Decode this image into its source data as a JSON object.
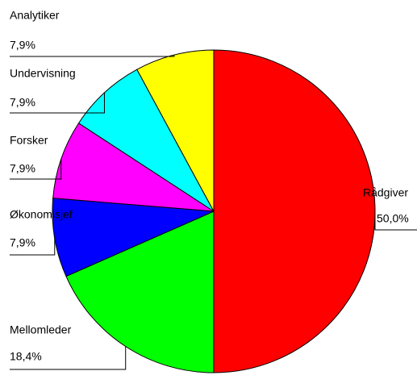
{
  "chart_data": {
    "type": "pie",
    "categories": [
      "Rådgiver",
      "Mellomleder",
      "Økonomisjef",
      "Forsker",
      "Undervisning",
      "Analytiker"
    ],
    "values": [
      50.0,
      18.4,
      7.9,
      7.9,
      7.9,
      7.9
    ],
    "value_labels": [
      "50,0%",
      "18,4%",
      "7,9%",
      "7,9%",
      "7,9%",
      "7,9%"
    ],
    "colors": [
      "#ff0000",
      "#00ff00",
      "#0000ff",
      "#ff00ff",
      "#00ffff",
      "#ffff00"
    ]
  }
}
